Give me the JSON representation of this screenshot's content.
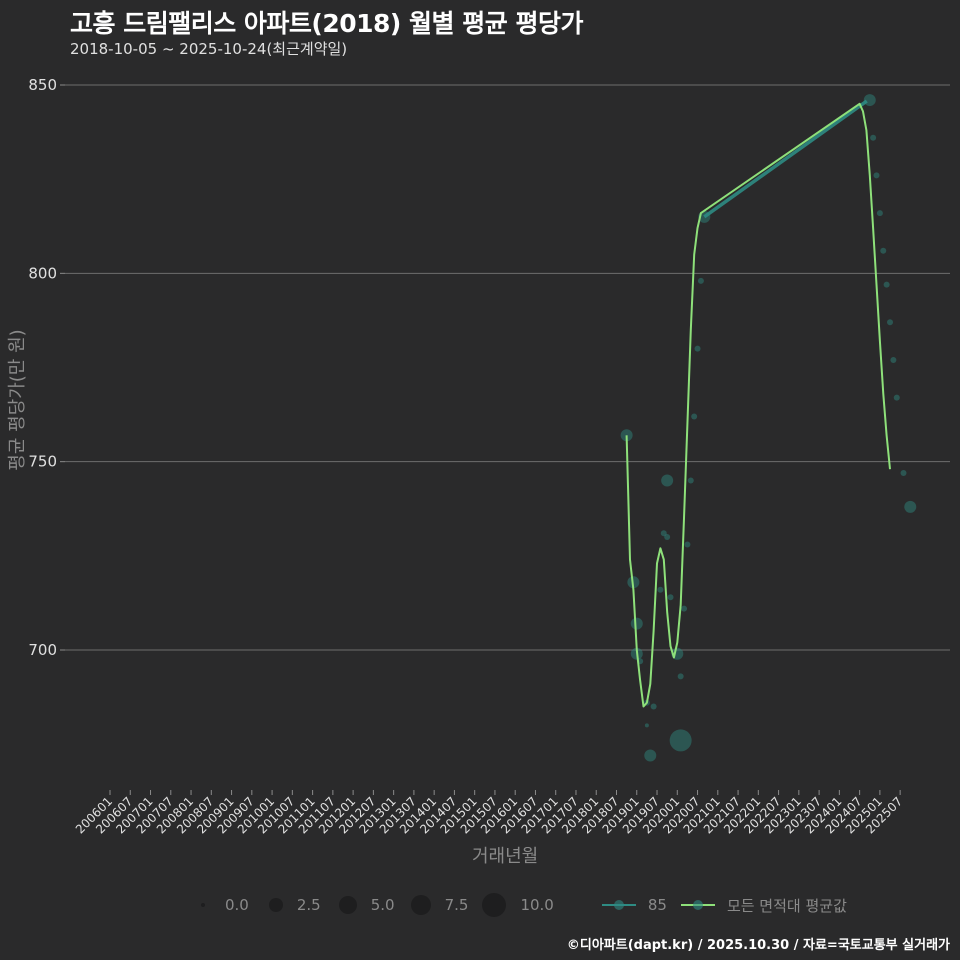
{
  "header": {
    "title": "고흥 드림팰리스 아파트(2018) 월별 평균 평당가",
    "subtitle": "2018-10-05 ~ 2025-10-24(최근계약일)"
  },
  "axes": {
    "ylabel": "평균 평당가(만 원)",
    "xlabel": "거래년월"
  },
  "legend": {
    "size_items": [
      "0.0",
      "2.5",
      "5.0",
      "7.5",
      "10.0"
    ],
    "series_items": [
      {
        "label": "85",
        "color": "#2e8b83"
      },
      {
        "label": "모든 면적대 평균값",
        "color": "#8ee07a"
      }
    ]
  },
  "footer": "©디아파트(dapt.kr) / 2025.10.30 / 자료=국토교통부 실거래가",
  "colors": {
    "background": "#2a2a2b",
    "grid": "#6e6e6e",
    "series_85": "#2e8b83",
    "avg_line": "#8ee07a"
  },
  "chart_data": {
    "type": "line",
    "title": "고흥 드림팰리스 아파트(2018) 월별 평균 평당가",
    "subtitle": "2018-10-05 ~ 2025-10-24(최근계약일)",
    "xlabel": "거래년월",
    "ylabel": "평균 평당가(만 원)",
    "ylim": [
      664,
      852
    ],
    "yticks": [
      700,
      750,
      800,
      850
    ],
    "grid": true,
    "legend_position": "bottom",
    "x_ticks": [
      "200601",
      "200607",
      "200701",
      "200707",
      "200801",
      "200807",
      "200901",
      "200907",
      "201001",
      "201007",
      "201101",
      "201107",
      "201201",
      "201207",
      "201301",
      "201307",
      "201401",
      "201407",
      "201501",
      "201507",
      "201601",
      "201607",
      "201701",
      "201707",
      "201801",
      "201807",
      "201901",
      "201907",
      "202001",
      "202007",
      "202101",
      "202107",
      "202201",
      "202207",
      "202301",
      "202307",
      "202401",
      "202407",
      "202501",
      "202507"
    ],
    "series": [
      {
        "name": "85",
        "kind": "scatter+line",
        "points": [
          {
            "x": "201810",
            "y": 757,
            "size": 4
          },
          {
            "x": "201812",
            "y": 718,
            "size": 3
          },
          {
            "x": "201901",
            "y": 707,
            "size": 3
          },
          {
            "x": "201901",
            "y": 699,
            "size": 4
          },
          {
            "x": "201902",
            "y": 697,
            "size": 1
          },
          {
            "x": "201904",
            "y": 686,
            "size": 1
          },
          {
            "x": "201904",
            "y": 680,
            "size": 0.5
          },
          {
            "x": "201905",
            "y": 672,
            "size": 3
          },
          {
            "x": "201906",
            "y": 685,
            "size": 1
          },
          {
            "x": "201908",
            "y": 716,
            "size": 1
          },
          {
            "x": "201909",
            "y": 731,
            "size": 1
          },
          {
            "x": "201910",
            "y": 745,
            "size": 3
          },
          {
            "x": "201910",
            "y": 730,
            "size": 1
          },
          {
            "x": "201911",
            "y": 714,
            "size": 1
          },
          {
            "x": "202001",
            "y": 699,
            "size": 3
          },
          {
            "x": "202002",
            "y": 676,
            "size": 10
          },
          {
            "x": "202002",
            "y": 693,
            "size": 1
          },
          {
            "x": "202003",
            "y": 711,
            "size": 1
          },
          {
            "x": "202004",
            "y": 728,
            "size": 1
          },
          {
            "x": "202005",
            "y": 745,
            "size": 1
          },
          {
            "x": "202006",
            "y": 762,
            "size": 1
          },
          {
            "x": "202007",
            "y": 780,
            "size": 1
          },
          {
            "x": "202008",
            "y": 798,
            "size": 1
          },
          {
            "x": "202009",
            "y": 815,
            "size": 3
          },
          {
            "x": "202410",
            "y": 846,
            "size": 3
          },
          {
            "x": "202411",
            "y": 836,
            "size": 1
          },
          {
            "x": "202412",
            "y": 826,
            "size": 1
          },
          {
            "x": "202501",
            "y": 816,
            "size": 1
          },
          {
            "x": "202502",
            "y": 806,
            "size": 1
          },
          {
            "x": "202503",
            "y": 797,
            "size": 1
          },
          {
            "x": "202504",
            "y": 787,
            "size": 1
          },
          {
            "x": "202505",
            "y": 777,
            "size": 1
          },
          {
            "x": "202506",
            "y": 767,
            "size": 1
          },
          {
            "x": "202508",
            "y": 747,
            "size": 1
          },
          {
            "x": "202510",
            "y": 738,
            "size": 3
          }
        ]
      },
      {
        "name": "모든 면적대 평균값",
        "kind": "line",
        "points": [
          {
            "x": "201810",
            "y": 757
          },
          {
            "x": "201811",
            "y": 724
          },
          {
            "x": "201812",
            "y": 716
          },
          {
            "x": "201901",
            "y": 700
          },
          {
            "x": "201902",
            "y": 692
          },
          {
            "x": "201903",
            "y": 685
          },
          {
            "x": "201904",
            "y": 686
          },
          {
            "x": "201905",
            "y": 691
          },
          {
            "x": "201906",
            "y": 705
          },
          {
            "x": "201907",
            "y": 723
          },
          {
            "x": "201908",
            "y": 727
          },
          {
            "x": "201909",
            "y": 724
          },
          {
            "x": "201910",
            "y": 710
          },
          {
            "x": "201911",
            "y": 701
          },
          {
            "x": "201912",
            "y": 698
          },
          {
            "x": "202001",
            "y": 702
          },
          {
            "x": "202002",
            "y": 712
          },
          {
            "x": "202003",
            "y": 735
          },
          {
            "x": "202004",
            "y": 760
          },
          {
            "x": "202005",
            "y": 785
          },
          {
            "x": "202006",
            "y": 805
          },
          {
            "x": "202007",
            "y": 812
          },
          {
            "x": "202008",
            "y": 816
          },
          {
            "x": "202407",
            "y": 845
          },
          {
            "x": "202408",
            "y": 843
          },
          {
            "x": "202409",
            "y": 838
          },
          {
            "x": "202410",
            "y": 826
          },
          {
            "x": "202411",
            "y": 812
          },
          {
            "x": "202412",
            "y": 797
          },
          {
            "x": "202501",
            "y": 782
          },
          {
            "x": "202502",
            "y": 768
          },
          {
            "x": "202503",
            "y": 757
          },
          {
            "x": "202504",
            "y": 748
          }
        ]
      }
    ]
  }
}
